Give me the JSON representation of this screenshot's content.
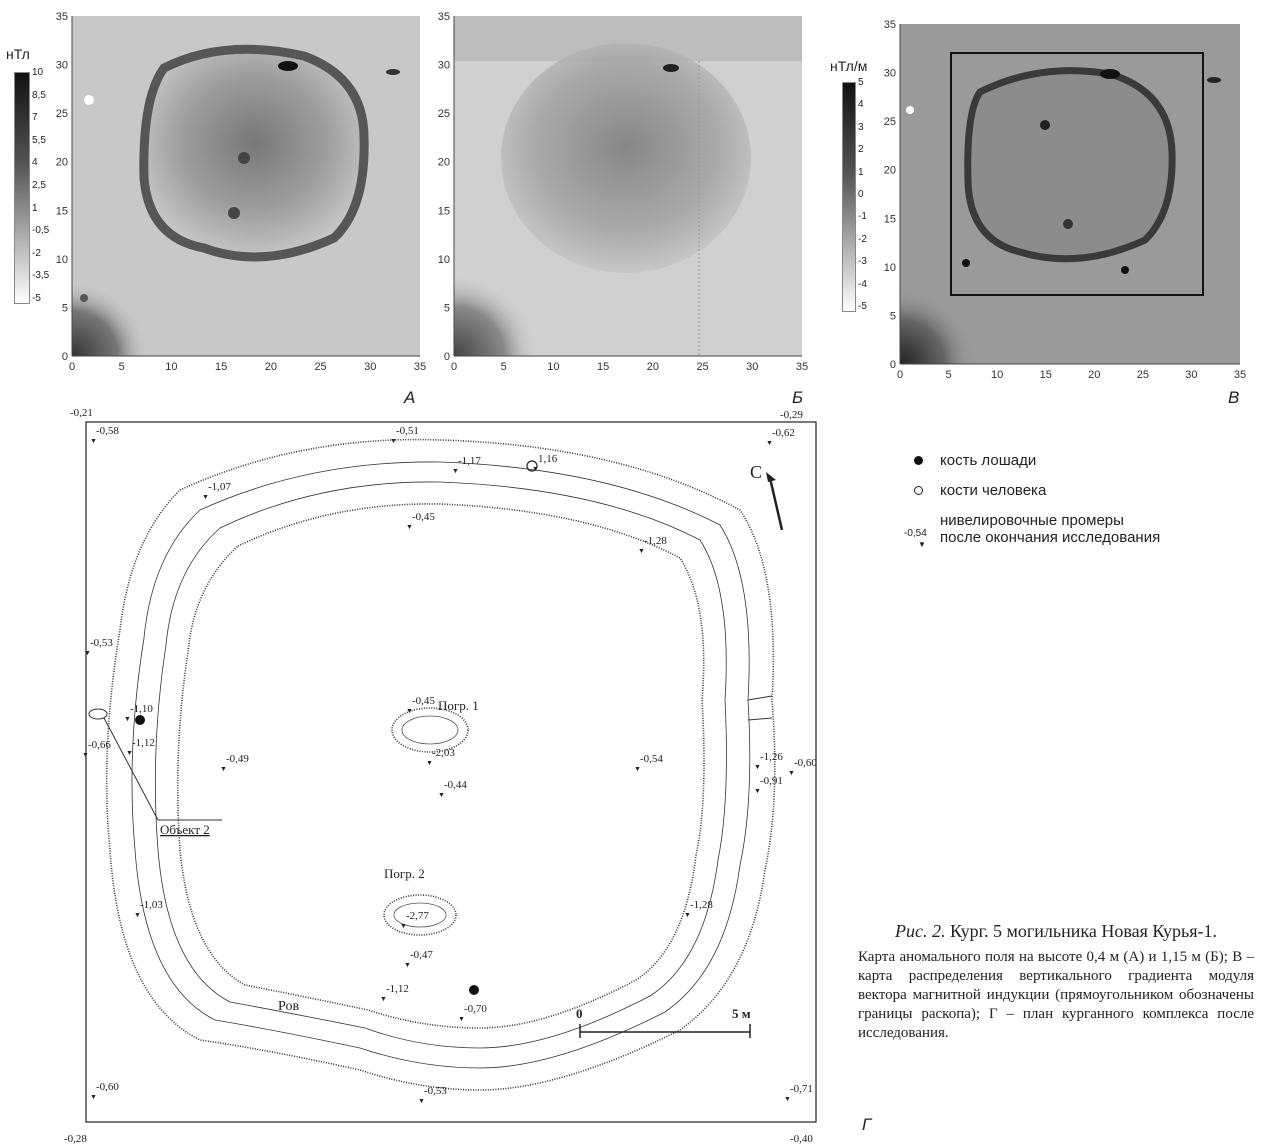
{
  "panel_a": {
    "letter": "А",
    "unit": "нТл",
    "colorbar": [
      "10",
      "8,5",
      "7",
      "5,5",
      "4",
      "2,5",
      "1",
      "-0,5",
      "-2",
      "-3,5",
      "-5"
    ],
    "y_ticks": [
      "35",
      "30",
      "25",
      "20",
      "15",
      "10",
      "5",
      "0"
    ],
    "x_ticks": [
      "0",
      "5",
      "10",
      "15",
      "20",
      "25",
      "30",
      "35"
    ]
  },
  "panel_b": {
    "letter": "Б",
    "y_ticks": [
      "35",
      "30",
      "25",
      "20",
      "15",
      "10",
      "5",
      "0"
    ],
    "x_ticks": [
      "0",
      "5",
      "10",
      "15",
      "20",
      "25",
      "30",
      "35"
    ]
  },
  "panel_v": {
    "letter": "В",
    "unit": "нТл/м",
    "colorbar": [
      "5",
      "4",
      "3",
      "2",
      "1",
      "0",
      "-1",
      "-2",
      "-3",
      "-4",
      "-5"
    ],
    "y_ticks": [
      "35",
      "30",
      "25",
      "20",
      "15",
      "10",
      "5",
      "0"
    ],
    "x_ticks": [
      "0",
      "5",
      "10",
      "15",
      "20",
      "25",
      "30",
      "35"
    ]
  },
  "legend": {
    "horse": "кость лошади",
    "human": "кости человека",
    "example_value": "-0,54",
    "leveling_line1": "нивелировочные промеры",
    "leveling_line2": "после окончания исследования"
  },
  "plan": {
    "letter": "Г",
    "north": "С",
    "corner_values": [
      "-0,21",
      "-0,29",
      "-0,28",
      "-0,40"
    ],
    "elevations": [
      {
        "label": "-0,58"
      },
      {
        "label": "-0,51"
      },
      {
        "label": "-0,62"
      },
      {
        "label": "-1,17"
      },
      {
        "label": "1,16"
      },
      {
        "label": "-1,07"
      },
      {
        "label": "-0,45"
      },
      {
        "label": "-1,28"
      },
      {
        "label": "-0,53"
      },
      {
        "label": "-0,45"
      },
      {
        "label": "-1,10"
      },
      {
        "label": "-0,54"
      },
      {
        "label": "-1,26"
      },
      {
        "label": "-0,60"
      },
      {
        "label": "-0,66"
      },
      {
        "label": "-1,12"
      },
      {
        "label": "-0,91"
      },
      {
        "label": "-2,03"
      },
      {
        "label": "-0,49"
      },
      {
        "label": "-0,44"
      },
      {
        "label": "-2,77"
      },
      {
        "label": "-1,03"
      },
      {
        "label": "-1,28"
      },
      {
        "label": "-0,47"
      },
      {
        "label": "-1,12"
      },
      {
        "label": "-0,70"
      },
      {
        "label": "-0,60"
      },
      {
        "label": "-0,53"
      },
      {
        "label": "-0,71"
      }
    ],
    "grave1": "Погр. 1",
    "grave2": "Погр. 2",
    "object2": "Объект 2",
    "ditch": "Ров",
    "scale_start": "0",
    "scale_end": "5 м"
  },
  "caption": {
    "title_italic": "Рис. 2.",
    "title_rest": " Кург. 5 могильника Новая Курья-1.",
    "body": "Карта аномального поля на высоте 0,4 м (А) и 1,15 м (Б); В – карта распределения вертикального градиента модуля вектора магнитной индукции (прямоугольником обозначены границы раскопа); Г – план курганного комплекса после исследования."
  }
}
